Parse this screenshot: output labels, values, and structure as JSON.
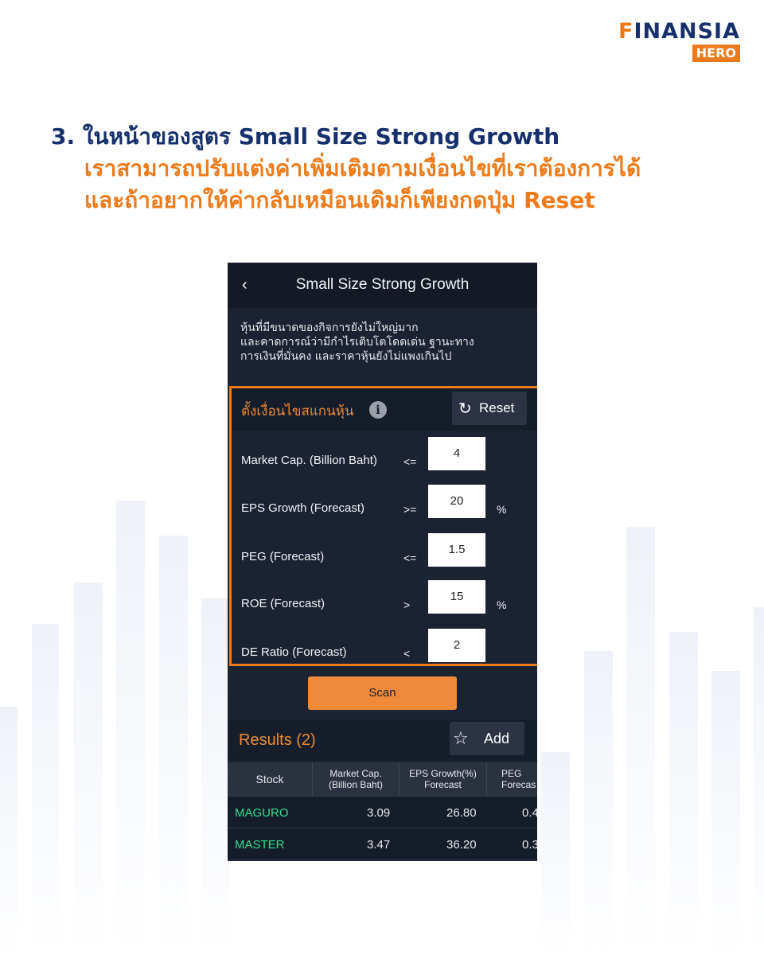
{
  "brand": {
    "logo_main_rest": "INANSIA",
    "logo_main_f": "F",
    "logo_sub": "HERO"
  },
  "headline": {
    "line1": "3. ในหน้าของสูตร Small Size Strong Growth",
    "line2": "เราสามารถปรับแต่งค่าเพิ่มเติมตามเงื่อนไขที่เราต้องการได้",
    "line3": "และถ้าอยากให้ค่ากลับเหมือนเดิมก็เพียงกดปุ่ม Reset"
  },
  "screen": {
    "back_icon": "chevron-left-icon",
    "title": "Small Size Strong Growth",
    "description_lines": [
      "หุ้นที่มีขนาดของกิจการยังไม่ใหญ่มาก",
      "และคาดการณ์ว่ามีกำไรเติบโตโดดเด่น ฐานะทาง",
      "การเงินที่มั่นคง และราคาหุ้นยังไม่แพงเกินไป"
    ],
    "filter": {
      "title": "ตั้งเงื่อนไขสแกนหุ้น",
      "info_icon": "info-icon",
      "reset_label": "Reset",
      "reset_icon": "refresh-icon",
      "highlight_color": "#ef7a1a",
      "rows": [
        {
          "label": "Market Cap. (Billion Baht)",
          "op": "<=",
          "value": "4",
          "unit": ""
        },
        {
          "label": "EPS Growth (Forecast)",
          "op": ">=",
          "value": "20",
          "unit": "%"
        },
        {
          "label": "PEG (Forecast)",
          "op": "<=",
          "value": "1.5",
          "unit": ""
        },
        {
          "label": "ROE (Forecast)",
          "op": ">",
          "value": "15",
          "unit": "%"
        },
        {
          "label": "DE Ratio (Forecast)",
          "op": "<",
          "value": "2",
          "unit": ""
        }
      ]
    },
    "scan_label": "Scan",
    "results": {
      "title": "Results (2)",
      "add_label": "Add",
      "add_icon": "star-icon",
      "columns": [
        {
          "l1": "Stock",
          "l2": ""
        },
        {
          "l1": "Market Cap.",
          "l2": "(Billion Baht)"
        },
        {
          "l1": "EPS Growth(%)",
          "l2": "Forecast"
        },
        {
          "l1": "PEG",
          "l2": "Forecas"
        }
      ],
      "rows": [
        {
          "stock": "MAGURO",
          "mcap": "3.09",
          "eps": "26.80",
          "peg": "0.4"
        },
        {
          "stock": "MASTER",
          "mcap": "3.47",
          "eps": "36.20",
          "peg": "0.3"
        }
      ]
    }
  }
}
